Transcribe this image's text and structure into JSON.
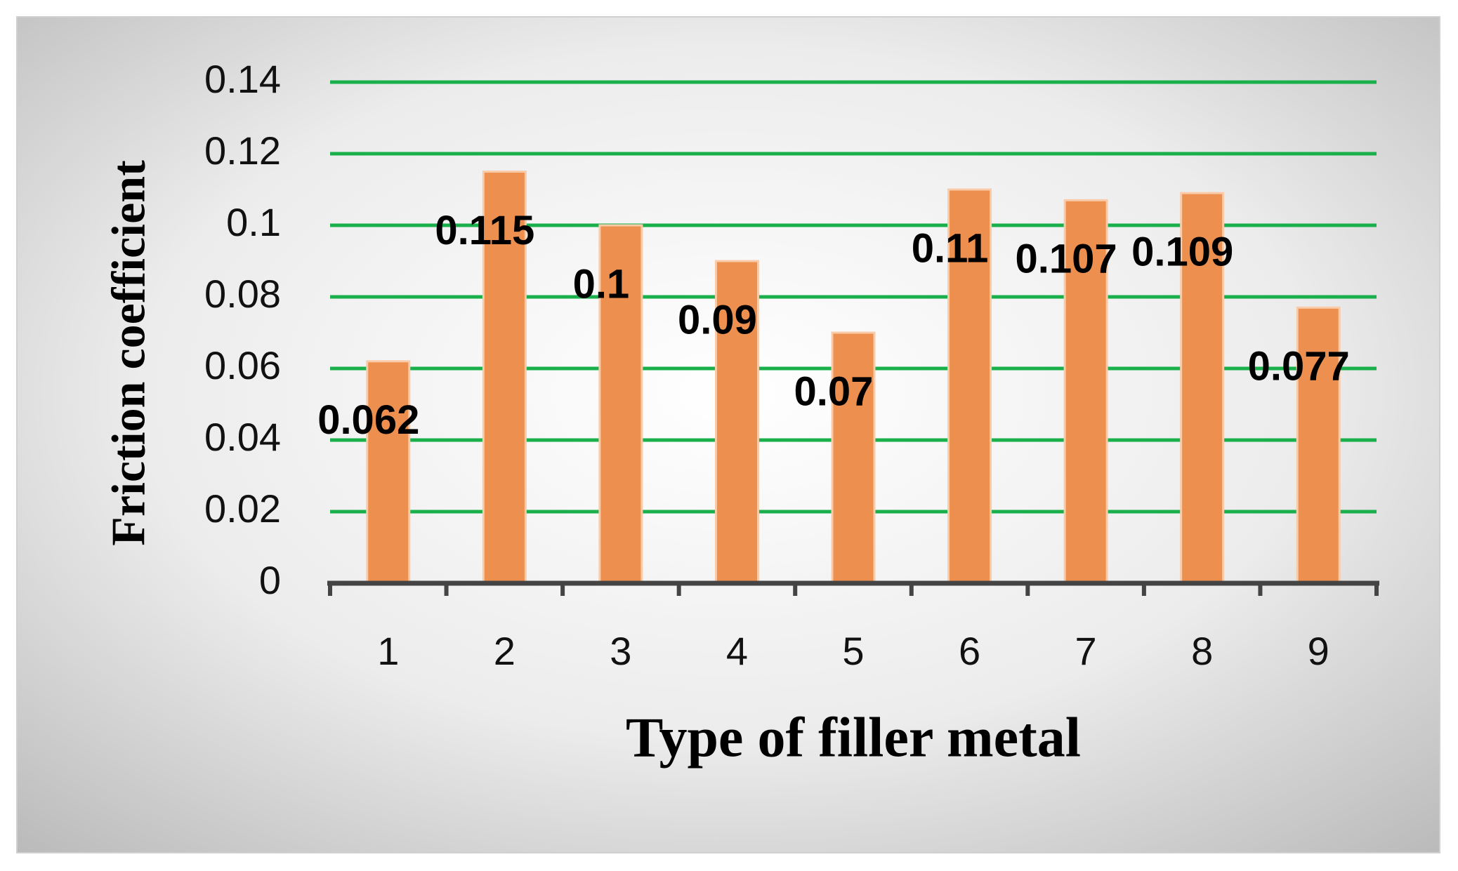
{
  "chart_data": {
    "type": "bar",
    "x_label": "Type of filler metal",
    "y_label": "Friction coefficient",
    "categories": [
      "1",
      "2",
      "3",
      "4",
      "5",
      "6",
      "7",
      "8",
      "9"
    ],
    "values": [
      0.062,
      0.115,
      0.1,
      0.09,
      0.07,
      0.11,
      0.107,
      0.109,
      0.077
    ],
    "color": "#ed8f4e",
    "ylim": [
      0,
      0.14
    ],
    "yticks": [
      0,
      0.02,
      0.04,
      0.06,
      0.08,
      0.1,
      0.12,
      0.14
    ],
    "grid": true,
    "grid_color": "#19b04b"
  }
}
